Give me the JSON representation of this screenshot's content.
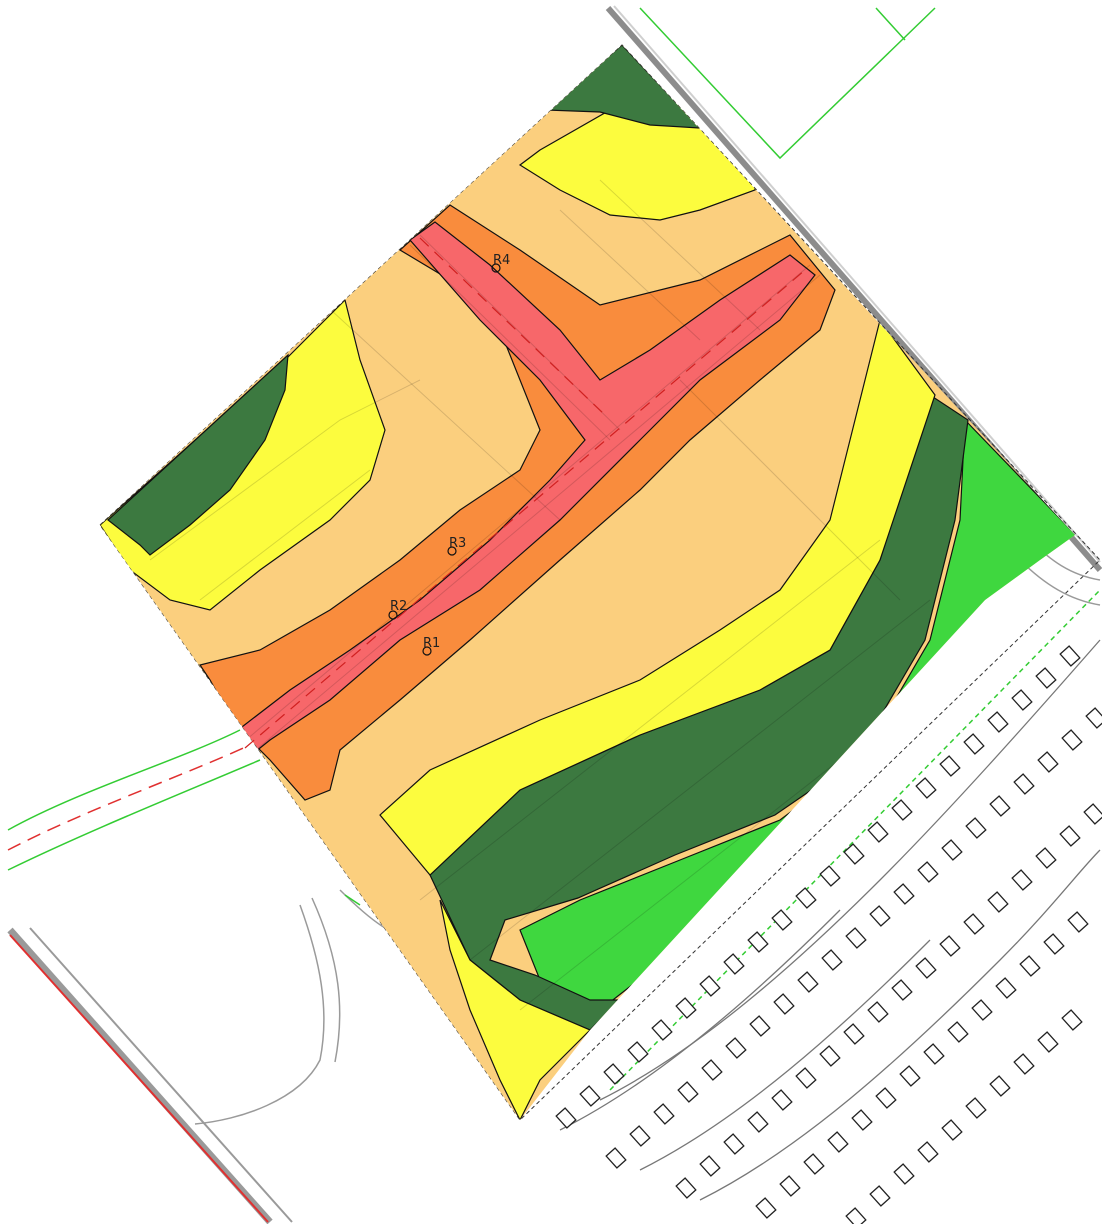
{
  "map": {
    "type": "noise contour map over site plan",
    "contour_colors": {
      "highest": "#f7676a",
      "high": "#f98c3d",
      "medium_high": "#fbcf7e",
      "medium": "#fcfc3e",
      "low": "#3c7940",
      "lowest": "#3fd73f"
    },
    "linework_colors": {
      "road_red": "#e03030",
      "boundary_green": "#33cc33",
      "building_outline": "#222222",
      "base_grey": "#9a9a9a"
    },
    "receptors": [
      {
        "id": "r1",
        "label": "R1"
      },
      {
        "id": "r2",
        "label": "R2"
      },
      {
        "id": "r3",
        "label": "R3"
      },
      {
        "id": "r4",
        "label": "R4"
      }
    ]
  }
}
